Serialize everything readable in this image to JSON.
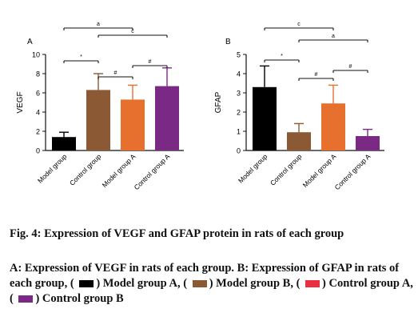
{
  "chart_data": [
    {
      "type": "bar",
      "panel_label": "A",
      "ylabel": "VEGF",
      "ylim": [
        0,
        10
      ],
      "yticks": [
        "0",
        "2",
        "4",
        "6",
        "8",
        "10"
      ],
      "categories": [
        "Model group",
        "Control group",
        "Model group A",
        "Control group A"
      ],
      "values": [
        1.4,
        6.3,
        5.3,
        6.7
      ],
      "errors": [
        0.5,
        1.7,
        1.5,
        1.9
      ],
      "bar_colors": [
        "#000000",
        "#8b5a35",
        "#e8702f",
        "#7a2a85"
      ],
      "significance": [
        {
          "from": 0,
          "to": 1,
          "label": "*"
        },
        {
          "from": 1,
          "to": 2,
          "label": "#"
        },
        {
          "from": 2,
          "to": 3,
          "label": "#"
        },
        {
          "from": 1,
          "to": 3,
          "label": "c"
        },
        {
          "from": 0,
          "to": 2,
          "label": "a"
        }
      ],
      "grid": false
    },
    {
      "type": "bar",
      "panel_label": "B",
      "ylabel": "GFAP",
      "ylim": [
        0,
        5
      ],
      "yticks": [
        "0",
        "1",
        "2",
        "3",
        "4",
        "5"
      ],
      "categories": [
        "Model group",
        "Control group",
        "Model group A",
        "Control group A"
      ],
      "values": [
        3.3,
        0.95,
        2.45,
        0.75
      ],
      "errors": [
        1.1,
        0.45,
        0.95,
        0.35
      ],
      "bar_colors": [
        "#000000",
        "#8b5a35",
        "#e8702f",
        "#7a2a85"
      ],
      "significance": [
        {
          "from": 0,
          "to": 1,
          "label": "*"
        },
        {
          "from": 1,
          "to": 2,
          "label": "#"
        },
        {
          "from": 2,
          "to": 3,
          "label": "#"
        },
        {
          "from": 1,
          "to": 3,
          "label": "a"
        },
        {
          "from": 0,
          "to": 2,
          "label": "c"
        }
      ],
      "grid": false
    }
  ],
  "caption": {
    "title": "Fig. 4: Expression of VEGF and GFAP protein in rats of each group",
    "line_a": "A: Expression of VEGF in rats of each group. B: Expression of GFAP in rats of each group, (",
    "legend_1": ") Model group A, (",
    "legend_2": ") Model group B, (",
    "legend_3": ") Control group A, (",
    "legend_4": ") Control group B",
    "swatch_colors": [
      "#000000",
      "#8b5a35",
      "#e83040",
      "#7a2a85"
    ]
  }
}
